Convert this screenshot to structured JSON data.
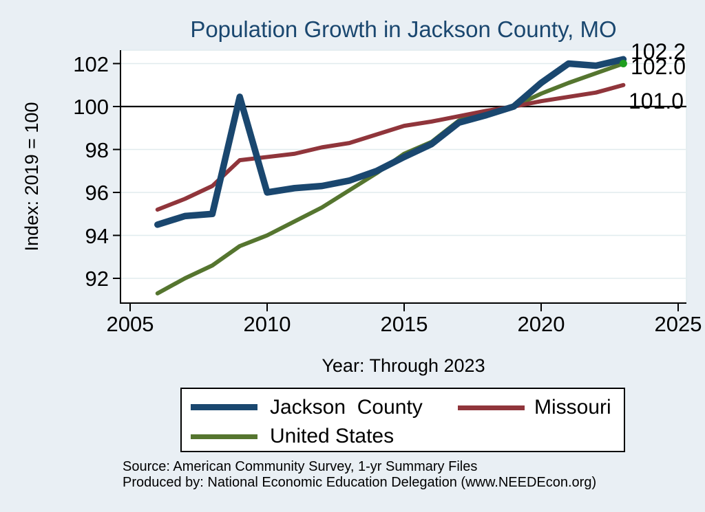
{
  "title": "Population Growth in Jackson County, MO",
  "y_axis_title": "Index: 2019 = 100",
  "x_axis_title": "Year: Through 2023",
  "source": {
    "line1": "Source: American Community Survey, 1-yr Summary Files",
    "line2": "Produced by: National Economic Education Delegation (www.NEEDEcon.org)"
  },
  "legend": {
    "items": [
      {
        "label": "Jackson  County",
        "color": "#1a476f"
      },
      {
        "label": "Missouri",
        "color": "#90353b"
      },
      {
        "label": "United States",
        "color": "#55752f"
      }
    ]
  },
  "colors": {
    "background": "#e9eff4",
    "plot_background": "#ffffff",
    "gridline": "#e0ebee",
    "axis": "#000000",
    "title": "#1a476f",
    "jackson_county": "#1a476f",
    "missouri": "#90353b",
    "united_states": "#55752f",
    "end_marker": "#1f9e1f"
  },
  "end_labels": [
    {
      "text": "102.2"
    },
    {
      "text": "102.0"
    },
    {
      "text": "101.0"
    }
  ],
  "chart_data": {
    "type": "line",
    "title": "Population Growth in Jackson County, MO",
    "xlabel": "Year: Through 2023",
    "ylabel": "Index: 2019 = 100",
    "xlim": [
      2004.65,
      2025.3
    ],
    "ylim": [
      90.85,
      102.62
    ],
    "x_ticks": [
      2005,
      2010,
      2015,
      2020,
      2025
    ],
    "y_ticks": [
      92,
      94,
      96,
      98,
      100,
      102
    ],
    "grid": "horizontal",
    "reference_line_y": 100,
    "legend_position": "below",
    "x": [
      2006,
      2007,
      2008,
      2009,
      2010,
      2011,
      2012,
      2013,
      2014,
      2015,
      2016,
      2017,
      2018,
      2019,
      2020,
      2021,
      2022,
      2023
    ],
    "series": [
      {
        "name": "United States",
        "color": "#55752f",
        "width": 6,
        "end_marker_color": "#1f9e1f",
        "values": [
          91.3,
          92.0,
          92.6,
          93.5,
          94.0,
          94.65,
          95.3,
          96.1,
          96.9,
          97.8,
          98.35,
          99.35,
          99.75,
          100.0,
          100.6,
          101.1,
          101.55,
          102.0
        ]
      },
      {
        "name": "Missouri",
        "color": "#90353b",
        "width": 6,
        "values": [
          95.2,
          95.7,
          96.3,
          97.5,
          97.65,
          97.8,
          98.1,
          98.3,
          98.7,
          99.1,
          99.3,
          99.55,
          99.8,
          100.0,
          100.25,
          100.45,
          100.65,
          101.0
        ]
      },
      {
        "name": "Jackson County",
        "color": "#1a476f",
        "width": 9.5,
        "values": [
          94.5,
          94.9,
          95.0,
          100.45,
          96.0,
          96.2,
          96.3,
          96.55,
          97.0,
          97.65,
          98.25,
          99.25,
          99.6,
          100.0,
          101.1,
          102.0,
          101.9,
          102.2
        ]
      }
    ],
    "end_value_labels": [
      "102.2",
      "102.0",
      "101.0"
    ]
  }
}
